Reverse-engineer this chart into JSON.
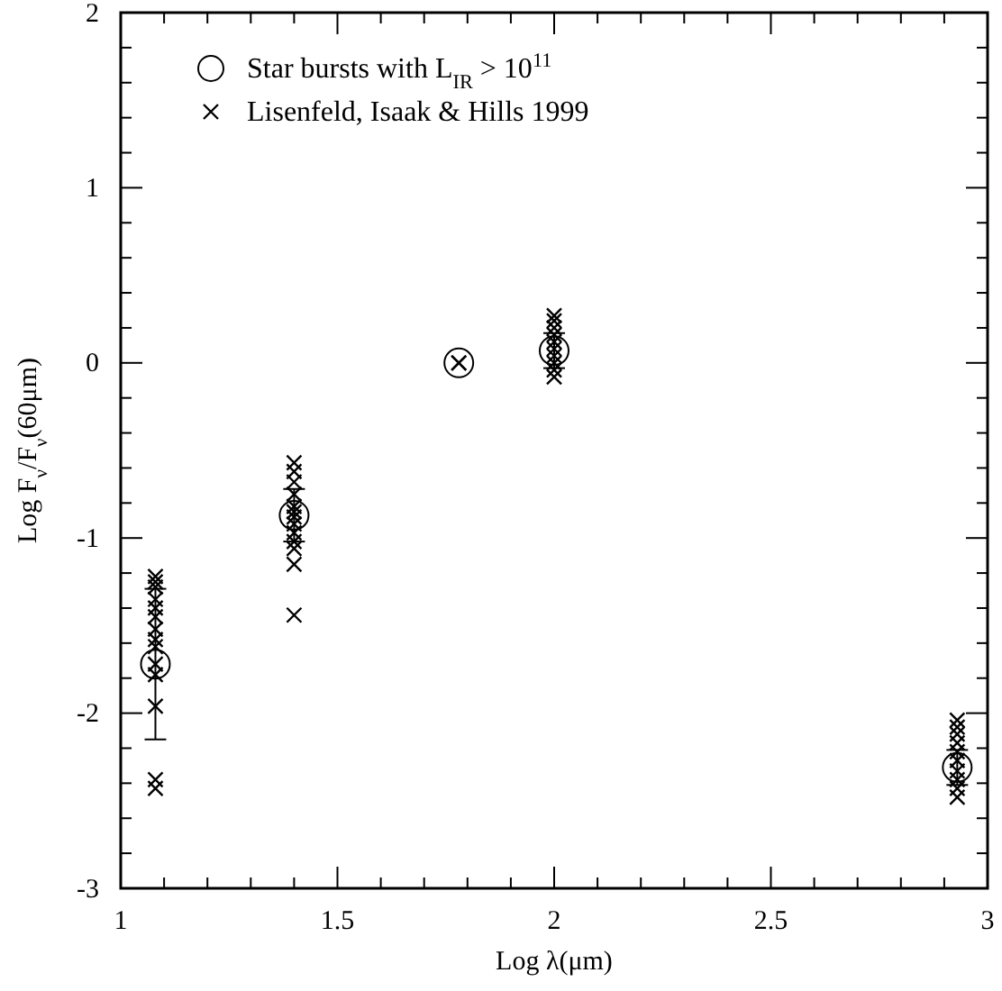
{
  "chart_data": {
    "type": "scatter",
    "xlabel": "Log λ(μm)",
    "ylabel": "Log F$_{ν}$/F$_{ν}$(60μm)",
    "xlim": [
      1,
      3
    ],
    "ylim": [
      -3,
      2
    ],
    "xticks": [
      1,
      {
        "value": 1.1,
        "label": null
      },
      {
        "value": 1.2,
        "label": null
      },
      {
        "value": 1.3,
        "label": null
      },
      {
        "value": 1.4,
        "label": null
      },
      1.5,
      {
        "value": 1.6,
        "label": null
      },
      {
        "value": 1.7,
        "label": null
      },
      {
        "value": 1.8,
        "label": null
      },
      {
        "value": 1.9,
        "label": null
      },
      2,
      {
        "value": 2.1,
        "label": null
      },
      {
        "value": 2.2,
        "label": null
      },
      {
        "value": 2.3,
        "label": null
      },
      {
        "value": 2.4,
        "label": null
      },
      2.5,
      {
        "value": 2.6,
        "label": null
      },
      {
        "value": 2.7,
        "label": null
      },
      {
        "value": 2.8,
        "label": null
      },
      {
        "value": 2.9,
        "label": null
      },
      3
    ],
    "yticks": [
      -3,
      {
        "value": -2.8,
        "label": null
      },
      {
        "value": -2.6,
        "label": null
      },
      {
        "value": -2.4,
        "label": null
      },
      {
        "value": -2.2,
        "label": null
      },
      -2,
      {
        "value": -1.8,
        "label": null
      },
      {
        "value": -1.6,
        "label": null
      },
      {
        "value": -1.4,
        "label": null
      },
      {
        "value": -1.2,
        "label": null
      },
      -1,
      {
        "value": -0.8,
        "label": null
      },
      {
        "value": -0.6,
        "label": null
      },
      {
        "value": -0.4,
        "label": null
      },
      {
        "value": -0.2,
        "label": null
      },
      0,
      {
        "value": 0.2,
        "label": null
      },
      {
        "value": 0.4,
        "label": null
      },
      {
        "value": 0.6,
        "label": null
      },
      {
        "value": 0.8,
        "label": null
      },
      1,
      {
        "value": 1.2,
        "label": null
      },
      {
        "value": 1.4,
        "label": null
      },
      {
        "value": 1.6,
        "label": null
      },
      {
        "value": 1.8,
        "label": null
      },
      2
    ],
    "grid": false,
    "legend": "top left",
    "series": [
      {
        "name": "Star bursts  with L$_{IR}$ > 10$^{11}$",
        "color": "#000000",
        "marker": "circle",
        "x": [
          1.08,
          1.4,
          1.78,
          2.0,
          2.93
        ],
        "values": [
          -1.72,
          -0.87,
          0.0,
          0.07,
          -2.31
        ],
        "errors": [
          0.43,
          0.15,
          null,
          0.1,
          0.1
        ]
      },
      {
        "name": "Lisenfeld, Isaak & Hills 1999",
        "color": "#000000",
        "marker": "cross",
        "x": [
          1.08,
          1.08,
          1.08,
          1.08,
          1.08,
          1.08,
          1.08,
          1.08,
          1.08,
          1.08,
          1.08,
          1.08,
          1.08,
          1.08,
          1.4,
          1.4,
          1.4,
          1.4,
          1.4,
          1.4,
          1.4,
          1.4,
          1.4,
          1.4,
          1.4,
          1.4,
          1.4,
          1.78,
          1.78,
          2.0,
          2.0,
          2.0,
          2.0,
          2.0,
          2.0,
          2.0,
          2.0,
          2.0,
          2.0,
          2.93,
          2.93,
          2.93,
          2.93,
          2.93,
          2.93,
          2.93,
          2.93,
          2.93,
          2.93
        ],
        "values": [
          -1.22,
          -1.25,
          -1.28,
          -1.35,
          -1.4,
          -1.45,
          -1.52,
          -1.58,
          -1.62,
          -1.72,
          -1.78,
          -1.96,
          -2.38,
          -2.43,
          -0.57,
          -0.62,
          -0.68,
          -0.75,
          -0.82,
          -0.85,
          -0.88,
          -0.92,
          -0.97,
          -1.02,
          -1.06,
          -1.15,
          -1.44,
          0.0,
          0.0,
          0.27,
          0.24,
          0.2,
          0.16,
          0.12,
          0.08,
          0.04,
          0.0,
          -0.04,
          -0.08,
          -2.04,
          -2.08,
          -2.12,
          -2.17,
          -2.22,
          -2.27,
          -2.33,
          -2.38,
          -2.43,
          -2.48
        ]
      }
    ]
  }
}
